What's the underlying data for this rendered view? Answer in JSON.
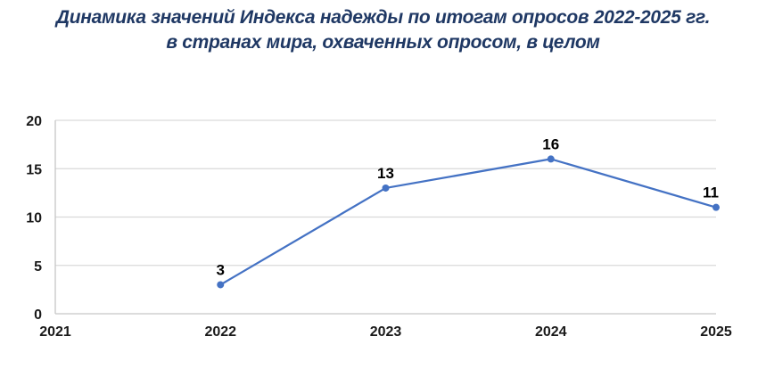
{
  "title": {
    "line1": "Динамика значений Индекса надежды по итогам опросов 2022-2025 гг.",
    "line2": "в странах мира, охваченных опросом, в целом",
    "color": "#1f3864"
  },
  "chart_data": {
    "type": "line",
    "title": "Динамика значений Индекса надежды по итогам опросов 2022-2025 гг. в странах мира, охваченных опросом, в целом",
    "x": [
      2022,
      2023,
      2024,
      2025
    ],
    "values": [
      3,
      13,
      16,
      11
    ],
    "data_labels": [
      "3",
      "13",
      "16",
      "11"
    ],
    "x_ticks": [
      "2021",
      "2022",
      "2023",
      "2024",
      "2025"
    ],
    "y_ticks": [
      0,
      5,
      10,
      15,
      20
    ],
    "xlim": [
      2021,
      2025
    ],
    "ylim": [
      0,
      20
    ],
    "xlabel": "",
    "ylabel": "",
    "grid": "horizontal",
    "legend": "none",
    "line_color": "#4472c4",
    "marker": "circle",
    "marker_color": "#4472c4",
    "gridline_color": "#d9d9d9",
    "axis_line_color": "#c6c6c6",
    "tick_label_color": "#1a1a1a",
    "data_label_color": "#000000",
    "background_color": "#ffffff"
  }
}
